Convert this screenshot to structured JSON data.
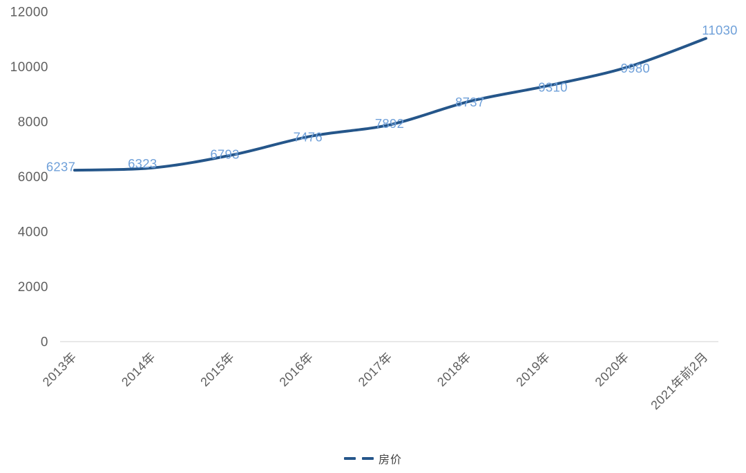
{
  "chart_data": {
    "type": "line",
    "categories": [
      "2013年",
      "2014年",
      "2015年",
      "2016年",
      "2017年",
      "2018年",
      "2019年",
      "2020年",
      "2021年前2月"
    ],
    "series": [
      {
        "name": "房价",
        "values": [
          6237,
          6323,
          6793,
          7476,
          7892,
          8737,
          9310,
          9980,
          11030
        ]
      }
    ],
    "ylim": [
      0,
      12000
    ],
    "yticks": [
      0,
      2000,
      4000,
      6000,
      8000,
      10000,
      12000
    ],
    "grid": false,
    "x_label_rotation": -45,
    "legend_position": "bottom",
    "legend_marker": "dashed-line",
    "show_data_labels": true,
    "colors": {
      "line": "#25568A",
      "data_label": "#6FA0D9",
      "axis_text": "#5F5F5F",
      "axis_line": "#D9D9D9",
      "legend_text": "#404040"
    }
  },
  "legend": {
    "label": "房价"
  }
}
